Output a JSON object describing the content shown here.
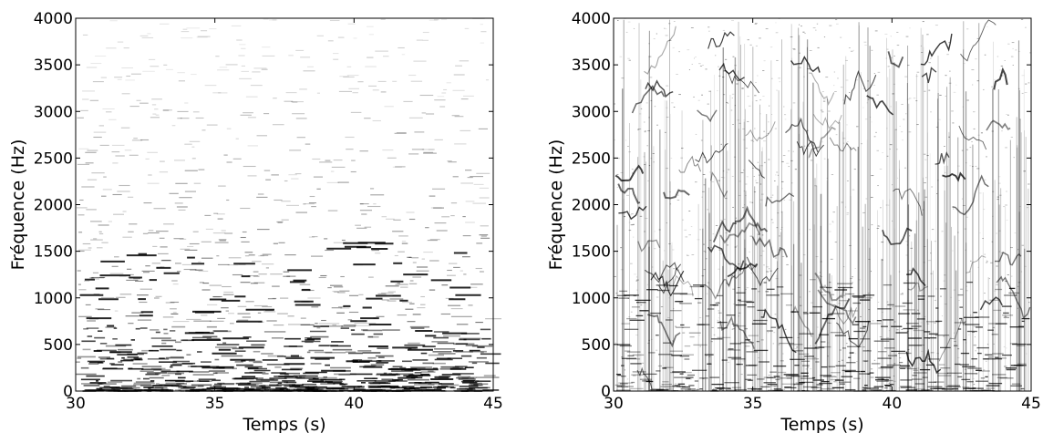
{
  "chart_data": [
    {
      "type": "heatmap",
      "subtype": "spectrogram",
      "colormap": "gray_r",
      "xlabel": "Temps (s)",
      "ylabel": "Fréquence (Hz)",
      "xlim": [
        30,
        45
      ],
      "ylim": [
        0,
        4000
      ],
      "xticks": [
        30,
        35,
        40,
        45
      ],
      "yticks": [
        0,
        500,
        1000,
        1500,
        2000,
        2500,
        3000,
        3500,
        4000
      ],
      "xtick_labels": [
        "30",
        "35",
        "40",
        "45"
      ],
      "ytick_labels": [
        "0",
        "500",
        "1000",
        "1500",
        "2000",
        "2500",
        "3000",
        "3500",
        "4000"
      ],
      "grid": false,
      "content": "harmonic"
    },
    {
      "type": "heatmap",
      "subtype": "spectrogram",
      "colormap": "gray_r",
      "xlabel": "Temps (s)",
      "ylabel": "Fréquence (Hz)",
      "xlim": [
        30,
        45
      ],
      "ylim": [
        0,
        4000
      ],
      "xticks": [
        30,
        35,
        40,
        45
      ],
      "yticks": [
        0,
        500,
        1000,
        1500,
        2000,
        2500,
        3000,
        3500,
        4000
      ],
      "xtick_labels": [
        "30",
        "35",
        "40",
        "45"
      ],
      "ytick_labels": [
        "0",
        "500",
        "1000",
        "1500",
        "2000",
        "2500",
        "3000",
        "3500",
        "4000"
      ],
      "grid": false,
      "content": "percussive-vocal"
    }
  ]
}
